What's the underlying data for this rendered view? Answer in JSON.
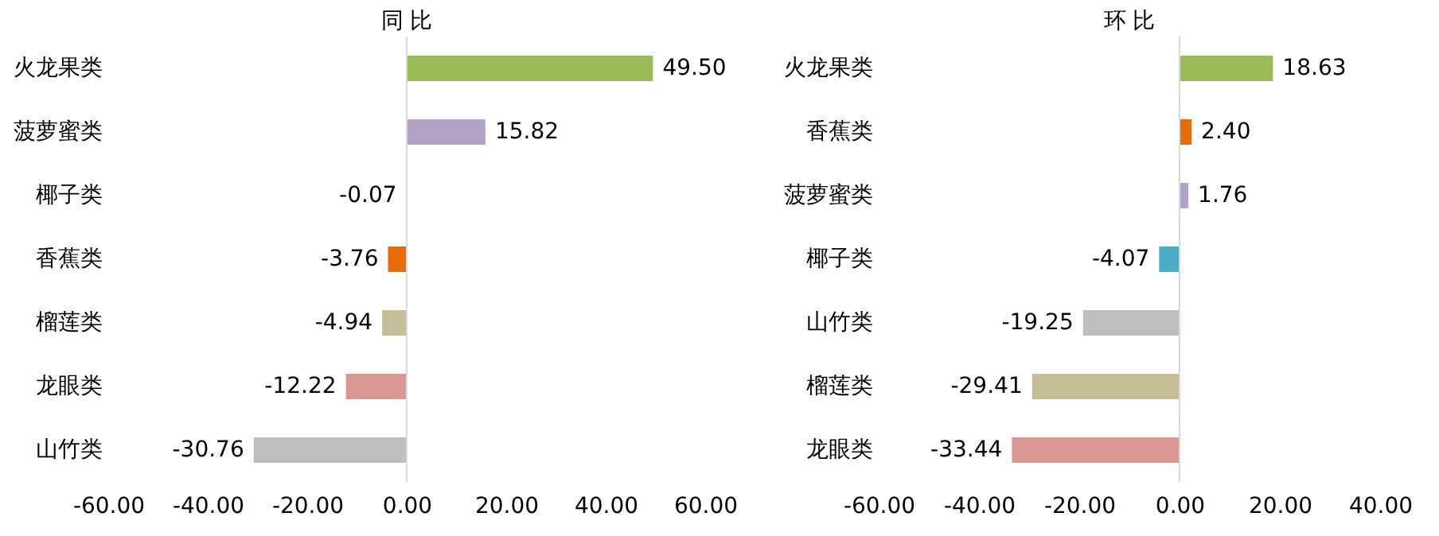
{
  "chart_data": [
    {
      "type": "bar",
      "orientation": "horizontal",
      "title": "同 比",
      "categories": [
        "火龙果类",
        "菠萝蜜类",
        "椰子类",
        "香蕉类",
        "榴莲类",
        "龙眼类",
        "山竹类"
      ],
      "values": [
        49.5,
        15.82,
        -0.07,
        -3.76,
        -4.94,
        -12.22,
        -30.76
      ],
      "value_labels": [
        "49.50",
        "15.82",
        "-0.07",
        "-3.76",
        "-4.94",
        "-12.22",
        "-30.76"
      ],
      "colors": [
        "#9bbb59",
        "#b3a2c7",
        "#4bacc6",
        "#e46c0a",
        "#c4bd97",
        "#d99694",
        "#bfbfbf"
      ],
      "xlim": [
        -60,
        60
      ],
      "xticks": [
        {
          "value": -60,
          "label": "-60.00"
        },
        {
          "value": -40,
          "label": "-40.00"
        },
        {
          "value": -20,
          "label": "-20.00"
        },
        {
          "value": 0,
          "label": "0.00"
        },
        {
          "value": 20,
          "label": "20.00"
        },
        {
          "value": 40,
          "label": "40.00"
        },
        {
          "value": 60,
          "label": "60.00"
        }
      ],
      "ref_lines": [
        {
          "axis": "x",
          "value": 0,
          "color": "#d9d9d9"
        }
      ],
      "grid": false,
      "legend": false
    },
    {
      "type": "bar",
      "orientation": "horizontal",
      "title": "环 比",
      "categories": [
        "火龙果类",
        "香蕉类",
        "菠萝蜜类",
        "椰子类",
        "山竹类",
        "榴莲类",
        "龙眼类"
      ],
      "values": [
        18.63,
        2.4,
        1.76,
        -4.07,
        -19.25,
        -29.41,
        -33.44
      ],
      "value_labels": [
        "18.63",
        "2.40",
        "1.76",
        "-4.07",
        "-19.25",
        "-29.41",
        "-33.44"
      ],
      "colors": [
        "#9bbb59",
        "#e46c0a",
        "#b3a2c7",
        "#4bacc6",
        "#bfbfbf",
        "#c4bd97",
        "#d99694"
      ],
      "xlim": [
        -60,
        40
      ],
      "xticks": [
        {
          "value": -60,
          "label": "-60.00"
        },
        {
          "value": -40,
          "label": "-40.00"
        },
        {
          "value": -20,
          "label": "-20.00"
        },
        {
          "value": 0,
          "label": "0.00"
        },
        {
          "value": 20,
          "label": "20.00"
        },
        {
          "value": 40,
          "label": "40.00"
        }
      ],
      "ref_lines": [
        {
          "axis": "x",
          "value": 0,
          "color": "#d9d9d9"
        }
      ],
      "grid": false,
      "legend": false
    }
  ]
}
